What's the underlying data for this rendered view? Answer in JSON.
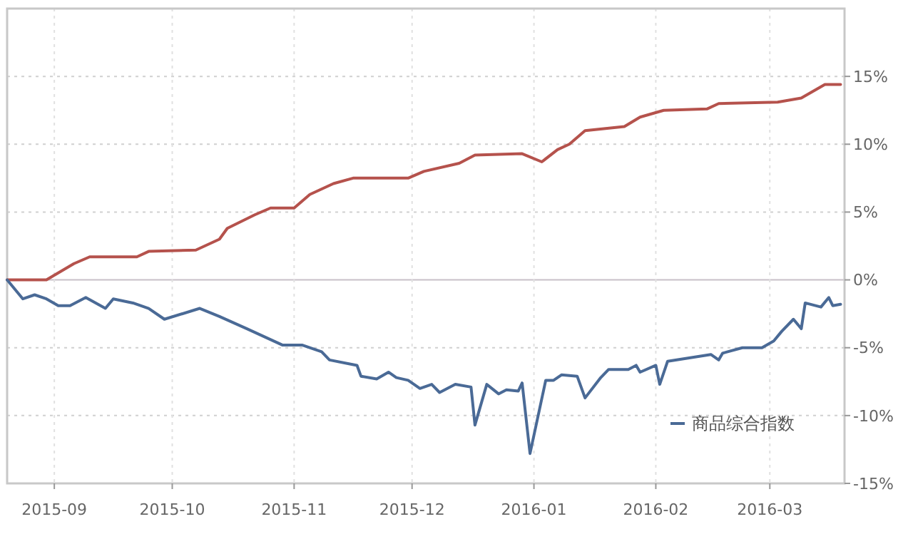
{
  "chart_data": {
    "type": "line",
    "xlim": [
      "2015-08-20",
      "2016-03-20"
    ],
    "xticks": [
      "2015-09",
      "2015-10",
      "2015-11",
      "2015-12",
      "2016-01",
      "2016-02",
      "2016-03"
    ],
    "ylim": [
      -15,
      20
    ],
    "yticks": [
      {
        "value": -15,
        "label": "-15%"
      },
      {
        "value": -10,
        "label": "-10%"
      },
      {
        "value": -5,
        "label": "-5%"
      },
      {
        "value": 0,
        "label": "0%"
      },
      {
        "value": 5,
        "label": "5%"
      },
      {
        "value": 10,
        "label": "10%"
      },
      {
        "value": 15,
        "label": "15%"
      }
    ],
    "grid": true,
    "legend": "bottom right",
    "line_style": "solid",
    "marker": "none",
    "series": [
      {
        "color": "#b5524c",
        "x": [
          "2015-08-20",
          "2015-08-30",
          "2015-09-06",
          "2015-09-10",
          "2015-09-22",
          "2015-09-25",
          "2015-10-07",
          "2015-10-13",
          "2015-10-15",
          "2015-10-22",
          "2015-10-26",
          "2015-11-01",
          "2015-11-05",
          "2015-11-11",
          "2015-11-16",
          "2015-11-30",
          "2015-12-04",
          "2015-12-13",
          "2015-12-17",
          "2015-12-29",
          "2016-01-03",
          "2016-01-07",
          "2016-01-10",
          "2016-01-14",
          "2016-01-24",
          "2016-01-28",
          "2016-02-03",
          "2016-02-14",
          "2016-02-17",
          "2016-03-03",
          "2016-03-09",
          "2016-03-15",
          "2016-03-19"
        ],
        "values": [
          0,
          0,
          1.2,
          1.7,
          1.7,
          2.1,
          2.2,
          3.0,
          3.8,
          4.8,
          5.3,
          5.3,
          6.3,
          7.1,
          7.5,
          7.5,
          8.0,
          8.6,
          9.2,
          9.3,
          8.7,
          9.6,
          10.0,
          11.0,
          11.3,
          12.0,
          12.5,
          12.6,
          13.0,
          13.1,
          13.4,
          14.4,
          14.4
        ]
      },
      {
        "name": "商品综合指数",
        "color": "#4a6a96",
        "x": [
          "2015-08-20",
          "2015-08-24",
          "2015-08-27",
          "2015-08-30",
          "2015-09-02",
          "2015-09-05",
          "2015-09-09",
          "2015-09-14",
          "2015-09-16",
          "2015-09-21",
          "2015-09-25",
          "2015-09-29",
          "2015-10-08",
          "2015-10-13",
          "2015-10-20",
          "2015-10-29",
          "2015-11-03",
          "2015-11-08",
          "2015-11-10",
          "2015-11-17",
          "2015-11-18",
          "2015-11-22",
          "2015-11-25",
          "2015-11-27",
          "2015-11-30",
          "2015-12-03",
          "2015-12-06",
          "2015-12-08",
          "2015-12-12",
          "2015-12-16",
          "2015-12-17",
          "2015-12-20",
          "2015-12-23",
          "2015-12-25",
          "2015-12-28",
          "2015-12-29",
          "2015-12-31",
          "2016-01-04",
          "2016-01-06",
          "2016-01-08",
          "2016-01-12",
          "2016-01-14",
          "2016-01-18",
          "2016-01-20",
          "2016-01-25",
          "2016-01-27",
          "2016-01-28",
          "2016-02-01",
          "2016-02-02",
          "2016-02-04",
          "2016-02-15",
          "2016-02-17",
          "2016-02-18",
          "2016-02-23",
          "2016-02-28",
          "2016-03-02",
          "2016-03-04",
          "2016-03-07",
          "2016-03-09",
          "2016-03-10",
          "2016-03-14",
          "2016-03-16",
          "2016-03-17",
          "2016-03-19"
        ],
        "values": [
          0,
          -1.4,
          -1.1,
          -1.4,
          -1.9,
          -1.9,
          -1.3,
          -2.1,
          -1.4,
          -1.7,
          -2.1,
          -2.9,
          -2.1,
          -2.7,
          -3.6,
          -4.8,
          -4.8,
          -5.3,
          -5.9,
          -6.3,
          -7.1,
          -7.3,
          -6.8,
          -7.2,
          -7.4,
          -8.0,
          -7.7,
          -8.3,
          -7.7,
          -7.9,
          -10.7,
          -7.7,
          -8.4,
          -8.1,
          -8.2,
          -7.6,
          -12.8,
          -7.4,
          -7.4,
          -7.0,
          -7.1,
          -8.7,
          -7.2,
          -6.6,
          -6.6,
          -6.3,
          -6.8,
          -6.3,
          -7.7,
          -6.0,
          -5.5,
          -5.9,
          -5.4,
          -5.0,
          -5.0,
          -4.5,
          -3.8,
          -2.9,
          -3.6,
          -1.7,
          -2.0,
          -1.3,
          -1.9,
          -1.8
        ]
      }
    ]
  }
}
